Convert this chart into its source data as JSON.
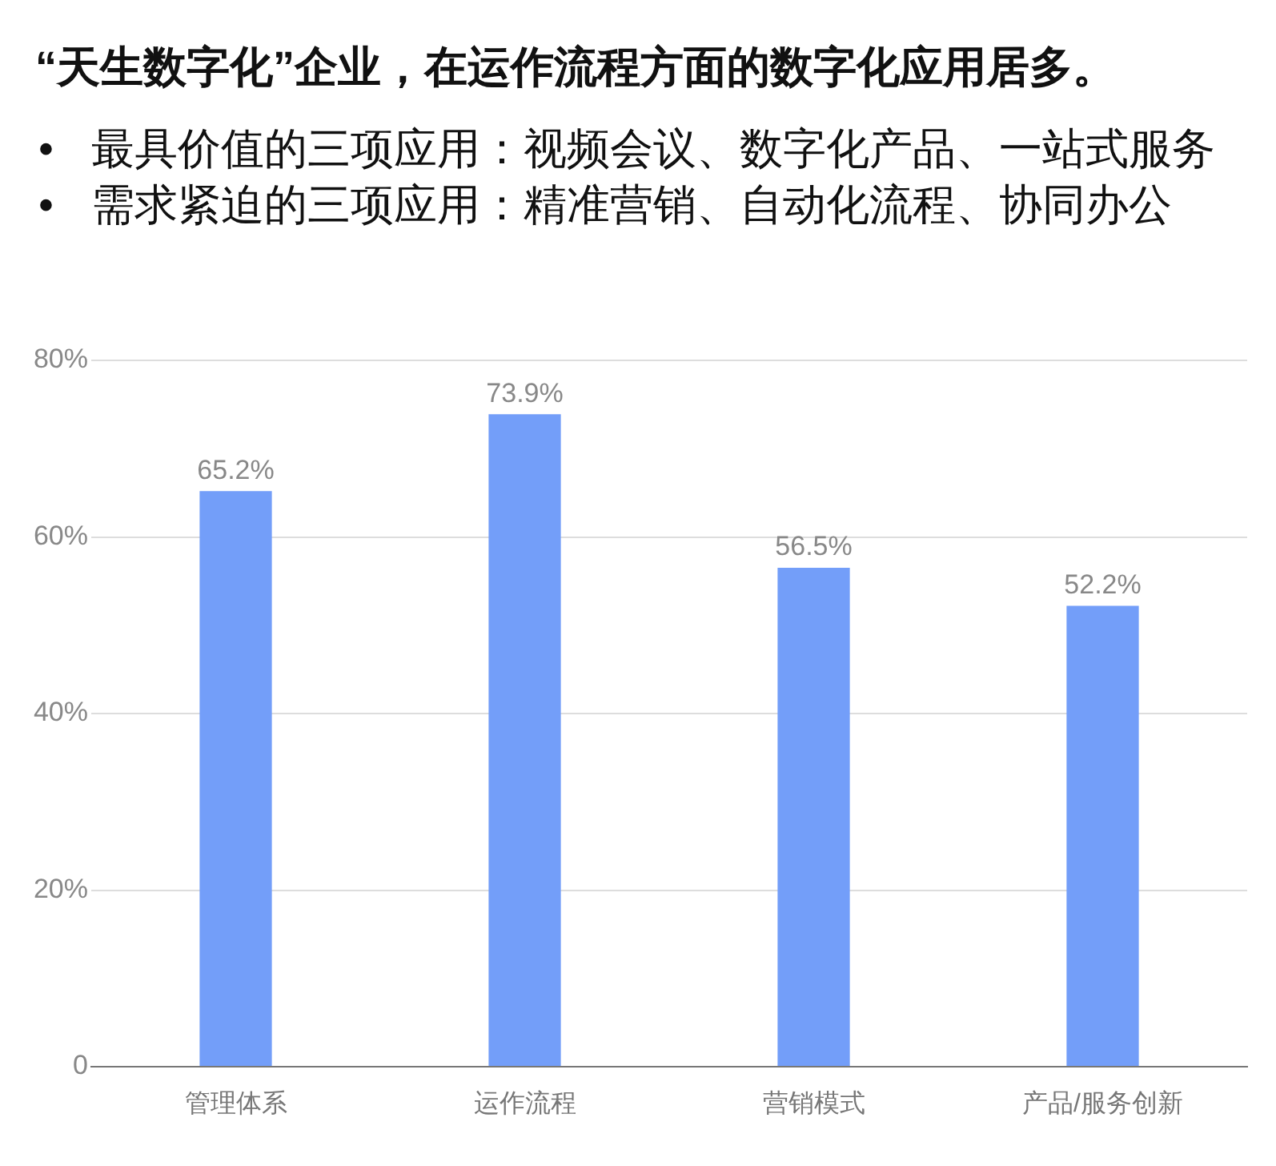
{
  "chart_data": {
    "type": "bar",
    "title": "“天生数字化”企业，在运作流程方面的数字化应用居多。",
    "annotations": [
      "• 最具价值的三项应用：视频会议、数字化产品、一站式服务",
      "• 需求紧迫的三项应用：精准营销、自动化流程、协同办公"
    ],
    "categories": [
      "管理体系",
      "运作流程",
      "营销模式",
      "产品/服务创新"
    ],
    "values": [
      65.2,
      73.9,
      56.5,
      52.2
    ],
    "value_labels": [
      "65.2%",
      "73.9%",
      "56.5%",
      "52.2%"
    ],
    "color": "#739ef9",
    "ylim": [
      0,
      80
    ],
    "yticks": [
      0,
      {
        "value": 20,
        "label": "20%"
      },
      {
        "value": 40,
        "label": "40%"
      },
      {
        "value": 60,
        "label": "60%"
      },
      {
        "value": 80,
        "label": "80%"
      }
    ],
    "grid": "y"
  }
}
